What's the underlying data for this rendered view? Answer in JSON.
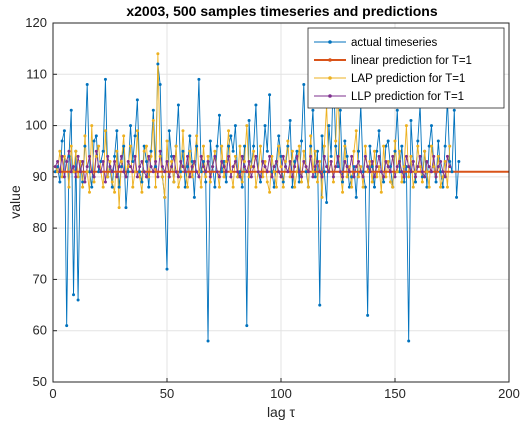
{
  "chart_data": {
    "type": "line",
    "title": "x2003, 500 samples timeseries and predictions",
    "xlabel": "lag τ",
    "ylabel": "value",
    "xlim": [
      0,
      200
    ],
    "ylim": [
      50,
      120
    ],
    "xticks": [
      "0",
      "50",
      "100",
      "150",
      "200"
    ],
    "yticks": [
      "50",
      "60",
      "70",
      "80",
      "90",
      "100",
      "110",
      "120"
    ],
    "grid": true,
    "legend_position": "top-right",
    "series": [
      {
        "name": "actual timeseries",
        "color": "#0072BD",
        "x_start": 1,
        "x_step": 1,
        "values": [
          91,
          92,
          89,
          97,
          99,
          61,
          94,
          103,
          67,
          95,
          66,
          93,
          89,
          96,
          108,
          91,
          88,
          97,
          98,
          91,
          93,
          95,
          109,
          90,
          92,
          88,
          94,
          99,
          88,
          92,
          96,
          84,
          91,
          100,
          93,
          98,
          105,
          91,
          89,
          96,
          93,
          88,
          95,
          103,
          92,
          112,
          108,
          90,
          86,
          72,
          99,
          94,
          89,
          96,
          104,
          91,
          95,
          88,
          92,
          98,
          93,
          86,
          96,
          109,
          91,
          93,
          89,
          58,
          97,
          92,
          88,
          96,
          102,
          91,
          93,
          89,
          96,
          98,
          95,
          100,
          90,
          91,
          88,
          96,
          61,
          101,
          92,
          96,
          104,
          91,
          89,
          93,
          100,
          95,
          106,
          91,
          88,
          93,
          98,
          94,
          89,
          92,
          96,
          101,
          88,
          93,
          95,
          89,
          97,
          108,
          91,
          88,
          96,
          103,
          90,
          95,
          65,
          98,
          91,
          85,
          100,
          94,
          111,
          96,
          92,
          103,
          89,
          97,
          94,
          88,
          90,
          92,
          86,
          95,
          104,
          91,
          88,
          63,
          96,
          92,
          88,
          95,
          99,
          91,
          89,
          96,
          97,
          92,
          88,
          95,
          103,
          91,
          96,
          89,
          92,
          58,
          101,
          93,
          89,
          97,
          104,
          90,
          95,
          88,
          96,
          100,
          92,
          89,
          97,
          91,
          88,
          96,
          105,
          93,
          91,
          103,
          86,
          93
        ]
      },
      {
        "name": "linear prediction for T=1",
        "color": "#D95319",
        "value": 91
      },
      {
        "name": "LAP prediction for T=1",
        "color": "#EDB120",
        "x_start": 1,
        "x_step": 1,
        "values": [
          92,
          91,
          95,
          90,
          94,
          93,
          88,
          96,
          91,
          95,
          90,
          93,
          88,
          98,
          91,
          87,
          100,
          89,
          94,
          96,
          91,
          88,
          99,
          90,
          93,
          89,
          87,
          95,
          84,
          93,
          98,
          90,
          92,
          96,
          88,
          91,
          99,
          90,
          87,
          95,
          96,
          90,
          94,
          101,
          88,
          114,
          94,
          90,
          86,
          97,
          90,
          93,
          89,
          96,
          88,
          90,
          99,
          91,
          88,
          95,
          90,
          93,
          98,
          91,
          88,
          96,
          90,
          94,
          89,
          92,
          95,
          91,
          88,
          96,
          90,
          93,
          99,
          91,
          88,
          94,
          90,
          96,
          89,
          93,
          100,
          90,
          92,
          95,
          88,
          91,
          96,
          90,
          93,
          89,
          87,
          94,
          91,
          88,
          96,
          92,
          88,
          93,
          97,
          90,
          95,
          88,
          91,
          96,
          89,
          95,
          92,
          88,
          98,
          91,
          95,
          89,
          93,
          86,
          96,
          104,
          91,
          93,
          89,
          97,
          108,
          91,
          87,
          96,
          90,
          92,
          88,
          95,
          99,
          90,
          92,
          88,
          96,
          91,
          93,
          89,
          95,
          90,
          92,
          87,
          96,
          90,
          93,
          89,
          88,
          97,
          91,
          95,
          89,
          92,
          100,
          90,
          94,
          88,
          91,
          96,
          92,
          89,
          95,
          91,
          88,
          96,
          92,
          90,
          94,
          88,
          90,
          93,
          88,
          96
        ]
      },
      {
        "name": "LLP prediction for T=1",
        "color": "#7E2F8E",
        "x_start": 1,
        "x_step": 1,
        "values": [
          92,
          93,
          91,
          94,
          90,
          93,
          95,
          91,
          92,
          90,
          94,
          91,
          93,
          89,
          92,
          94,
          91,
          90,
          95,
          92,
          91,
          93,
          89,
          94,
          92,
          91,
          93,
          90,
          92,
          94,
          91,
          90,
          93,
          92,
          91,
          94,
          90,
          92,
          93,
          91,
          90,
          94,
          92,
          91,
          93,
          90,
          95,
          92,
          91,
          93,
          90,
          92,
          94,
          91,
          90,
          93,
          92,
          91,
          94,
          90,
          92,
          93,
          91,
          90,
          94,
          92,
          91,
          93,
          90,
          92,
          94,
          91,
          90,
          93,
          92,
          91,
          94,
          90,
          92,
          93,
          91,
          90,
          94,
          92,
          91,
          93,
          90,
          92,
          94,
          91,
          90,
          93,
          92,
          91,
          94,
          90,
          92,
          93,
          91,
          90,
          94,
          92,
          91,
          93,
          90,
          92,
          94,
          91,
          90,
          93,
          92,
          91,
          94,
          90,
          92,
          93,
          91,
          90,
          94,
          92,
          91,
          93,
          90,
          92,
          94,
          91,
          90,
          93,
          92,
          91,
          94,
          90,
          92,
          93,
          91,
          90,
          94,
          92,
          91,
          93,
          90,
          92,
          94,
          91,
          90,
          93,
          92,
          91,
          94,
          90,
          92,
          93,
          91,
          90,
          94,
          92,
          91,
          93,
          90,
          92,
          94,
          91,
          90,
          93,
          92,
          91,
          94,
          90,
          92,
          93,
          91,
          90,
          94,
          92
        ]
      }
    ]
  }
}
